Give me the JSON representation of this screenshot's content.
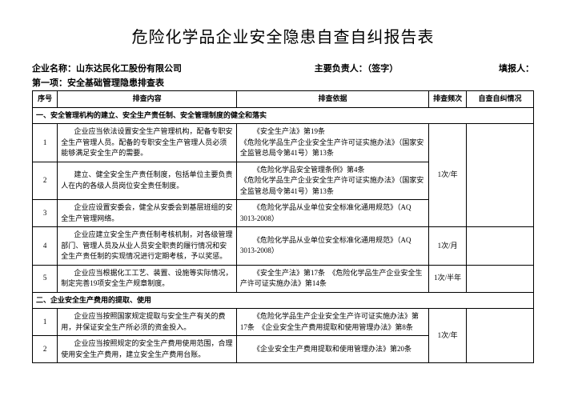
{
  "title": "危险化学品企业安全隐患自查自纠报告表",
  "meta": {
    "company_label": "企业名称：",
    "company_name": "山东达民化工股份有限公司",
    "responsible_label": "主要负责人：（签字）",
    "filler_label": "填报人："
  },
  "subheader": "第一项：安全基础管理隐患排查表",
  "headers": {
    "seq": "序号",
    "content": "排查内容",
    "basis": "排查依据",
    "freq": "排查频次",
    "status": "自查自纠情况"
  },
  "sections": [
    {
      "title": "一、安全管理机构的建立、安全生产责任制、安全管理制度的健全和落实",
      "rows": [
        {
          "seq": "1",
          "content": "企业应当依法设置安全生产管理机构，配备专职安全生产管理人员。配备的专职安全生产管理人员必须能够满足安全生产的需要。",
          "basis": "《安全生产法》第19条\n《危险化学品生产企业安全生产许可证实施办法》（国家安全监管总局令第41号）第13条",
          "freq_merge": true
        },
        {
          "seq": "2",
          "content": "建立、健全安全生产责任制度，包括单位主要负责人在内的各级人员岗位安全责任制度。",
          "basis": "《危险化学品安全管理条例》第4条\n《危险化学品生产企业安全生产许可证实施办法》（国家安全监管总局令第41号）第13条",
          "freq_merge": true
        },
        {
          "seq": "3",
          "content": "企业应设置安委会，健全从安委会到基层班组的安全生产管理网络。",
          "basis": "《危险化学品从业单位安全标准化通用规范》（AQ 3013-2008）",
          "freq_merge": true,
          "freq_value": "1次/年"
        },
        {
          "seq": "4",
          "content": "企业应建立安全生产责任制考核机制，对各级管理部门、管理人员及从业人员安全职责的履行情况和安全生产责任制的实现情况进行定期考核，予以奖惩。",
          "basis": "《危险化学品从业单位安全标准化通用规范》（AQ 3013-2008）",
          "freq": "1次/月"
        },
        {
          "seq": "5",
          "content": "企业应当根据化工工艺、装置、设施等实际情况，制定完善19项安全生产规章制度。",
          "basis": "《安全生产法》第17条　《危险化学品生产企业安全生产许可证实施办法》第14条",
          "freq": "1次/半年"
        }
      ]
    },
    {
      "title": "二、企业安全生产费用的提取、使用",
      "rows": [
        {
          "seq": "1",
          "content": "企业应当按照国家规定提取与安全生产有关的费用，并保证安全生产所必须的资金投入。",
          "basis": "《危险化学品生产企业安全生产许可证实施办法》第17条　《企业安全生产费用提取和使用管理办法》第8条",
          "freq_merge": true
        },
        {
          "seq": "2",
          "content": "企业应当按照规定的安全生产费用使用范围，合理使用安全生产费用，建立安全生产费用台账。",
          "basis": "《企业安全生产费用提取和使用管理办法》第20条",
          "freq_merge": true,
          "freq_value": "1次/年"
        }
      ]
    }
  ]
}
